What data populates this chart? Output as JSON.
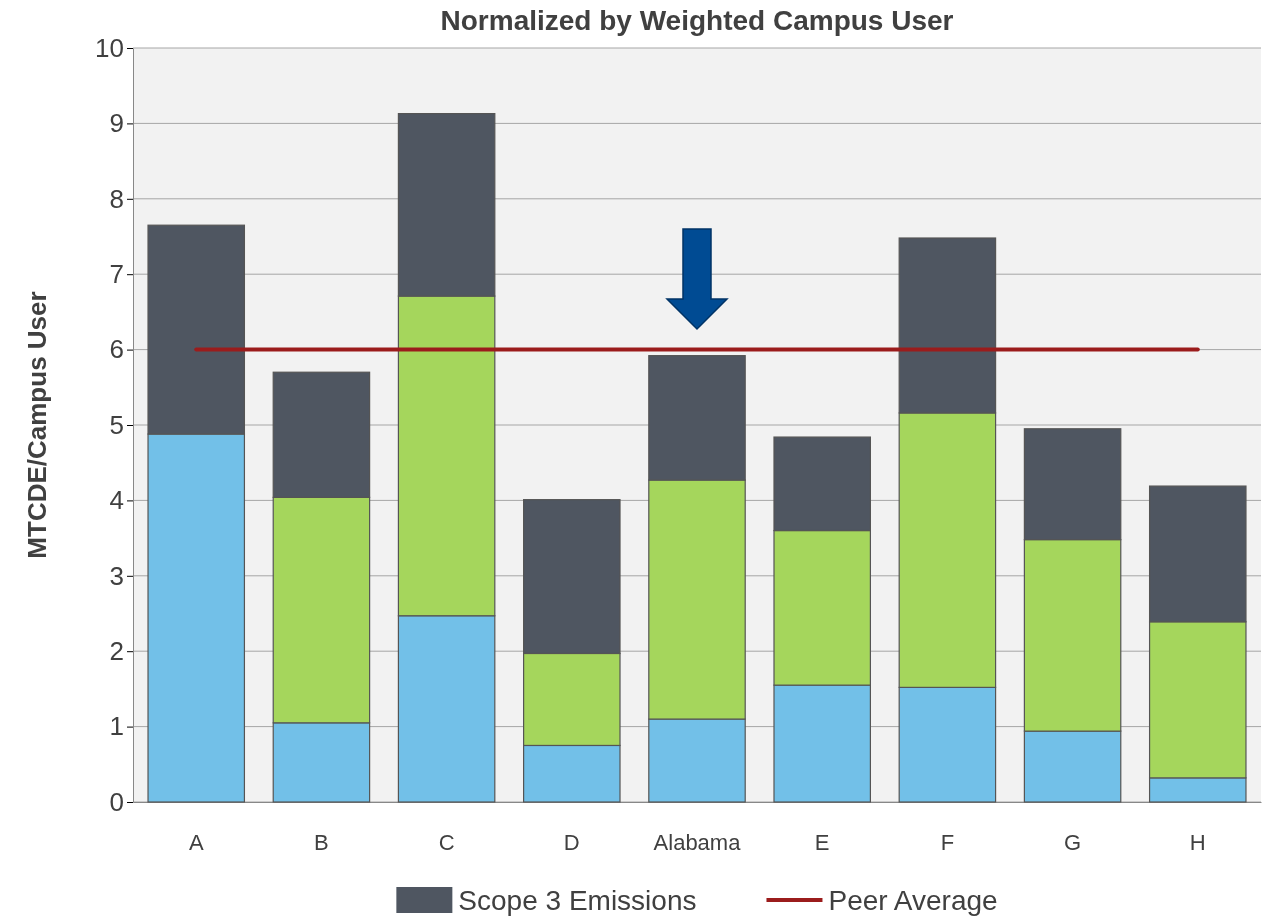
{
  "chart_data": {
    "type": "bar",
    "title": "Normalized by Weighted Campus User",
    "ylabel": "MTCDE/Campus User",
    "categories": [
      "A",
      "B",
      "C",
      "D",
      "Alabama",
      "E",
      "F",
      "G",
      "H"
    ],
    "stacked": true,
    "ylim": [
      0,
      10
    ],
    "yticks": [
      0,
      1,
      2,
      3,
      4,
      5,
      6,
      7,
      8,
      9,
      10
    ],
    "grid": "y",
    "legend": "bottom",
    "series": [
      {
        "color": "#72c0e8",
        "values": [
          4.88,
          1.05,
          2.47,
          0.75,
          1.1,
          1.55,
          1.52,
          0.94,
          0.32
        ]
      },
      {
        "color": "#a5d65c",
        "values": [
          0,
          2.99,
          4.24,
          1.22,
          3.17,
          2.05,
          3.64,
          2.54,
          2.07
        ]
      },
      {
        "name": "Scope 3 Emissions",
        "color": "#4f5661",
        "values": [
          2.77,
          1.66,
          2.42,
          2.04,
          1.65,
          1.24,
          2.32,
          1.47,
          1.8
        ]
      },
      {
        "name": "Peer Average",
        "type": "line",
        "color": "#9b1c1c",
        "marker": "none",
        "values": [
          6,
          6,
          6,
          6,
          6,
          6,
          6,
          6,
          6
        ]
      }
    ]
  }
}
